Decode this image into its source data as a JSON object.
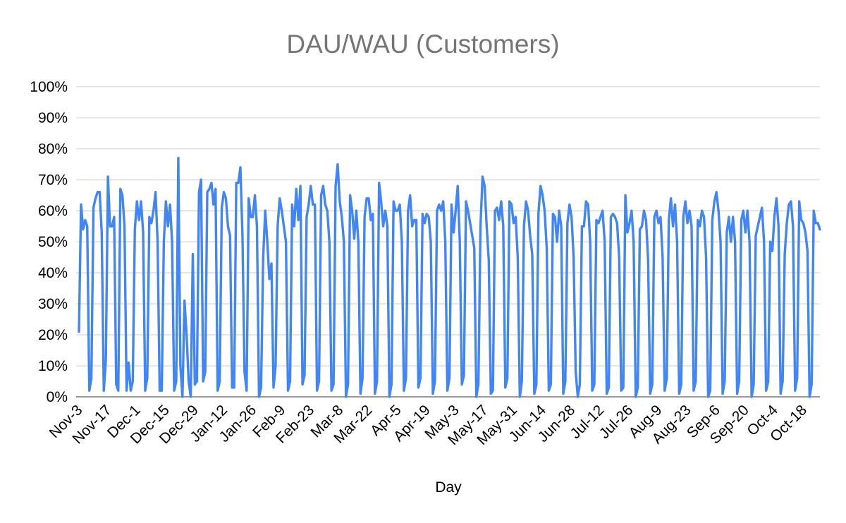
{
  "chart_data": {
    "type": "line",
    "title": "DAU/WAU (Customers)",
    "xlabel": "Day",
    "ylabel": "",
    "ylim": [
      0,
      1
    ],
    "grid": true,
    "legend": "none",
    "y_tick_labels": [
      "0%",
      "10%",
      "20%",
      "30%",
      "40%",
      "50%",
      "60%",
      "70%",
      "80%",
      "90%",
      "100%"
    ],
    "x_tick_labels": [
      "Nov-3",
      "Nov-17",
      "Dec-1",
      "Dec-15",
      "Dec-29",
      "Jan-12",
      "Jan-26",
      "Feb-9",
      "Feb-23",
      "Mar-8",
      "Mar-22",
      "Apr-5",
      "Apr-19",
      "May-3",
      "May-17",
      "May-31",
      "Jun-14",
      "Jun-28",
      "Jul-12",
      "Jul-26",
      "Aug-9",
      "Aug-23",
      "Sep-6",
      "Sep-20",
      "Oct-4",
      "Oct-18"
    ],
    "x_start_label": "Nov-3",
    "x_step_days": 1,
    "series": [
      {
        "color": "#4285f4",
        "values": [
          0.21,
          0.62,
          0.54,
          0.57,
          0.55,
          0.02,
          0.06,
          0.61,
          0.64,
          0.66,
          0.66,
          0.53,
          0.02,
          0.12,
          0.71,
          0.55,
          0.55,
          0.58,
          0.04,
          0.02,
          0.67,
          0.65,
          0.55,
          0.02,
          0.11,
          0.02,
          0.05,
          0.54,
          0.63,
          0.57,
          0.63,
          0.53,
          0.02,
          0.06,
          0.58,
          0.56,
          0.6,
          0.66,
          0.5,
          0.02,
          0.02,
          0.5,
          0.63,
          0.55,
          0.62,
          0.5,
          0.02,
          0.05,
          0.77,
          0.1,
          0.0,
          0.31,
          0.2,
          0.05,
          0.0,
          0.46,
          0.04,
          0.05,
          0.66,
          0.7,
          0.05,
          0.08,
          0.66,
          0.67,
          0.69,
          0.62,
          0.67,
          0.02,
          0.05,
          0.61,
          0.66,
          0.64,
          0.55,
          0.52,
          0.03,
          0.03,
          0.69,
          0.69,
          0.74,
          0.52,
          0.08,
          0.02,
          0.64,
          0.58,
          0.58,
          0.65,
          0.55,
          0.0,
          0.03,
          0.45,
          0.6,
          0.5,
          0.38,
          0.43,
          0.03,
          0.1,
          0.55,
          0.64,
          0.6,
          0.55,
          0.5,
          0.02,
          0.05,
          0.62,
          0.55,
          0.67,
          0.57,
          0.68,
          0.04,
          0.07,
          0.58,
          0.62,
          0.68,
          0.62,
          0.62,
          0.02,
          0.05,
          0.65,
          0.68,
          0.62,
          0.6,
          0.5,
          0.02,
          0.04,
          0.68,
          0.75,
          0.63,
          0.58,
          0.5,
          0.0,
          0.04,
          0.65,
          0.6,
          0.51,
          0.6,
          0.5,
          0.01,
          0.06,
          0.58,
          0.64,
          0.64,
          0.57,
          0.59,
          0.01,
          0.05,
          0.69,
          0.63,
          0.55,
          0.6,
          0.55,
          0.0,
          0.04,
          0.63,
          0.6,
          0.6,
          0.62,
          0.5,
          0.02,
          0.06,
          0.6,
          0.65,
          0.55,
          0.57,
          0.57,
          0.03,
          0.06,
          0.59,
          0.56,
          0.59,
          0.58,
          0.5,
          0.01,
          0.05,
          0.6,
          0.62,
          0.6,
          0.63,
          0.5,
          0.02,
          0.06,
          0.62,
          0.53,
          0.6,
          0.68,
          0.5,
          0.04,
          0.07,
          0.63,
          0.6,
          0.56,
          0.52,
          0.48,
          0.0,
          0.04,
          0.55,
          0.71,
          0.68,
          0.55,
          0.44,
          0.01,
          0.02,
          0.6,
          0.61,
          0.57,
          0.63,
          0.55,
          0.03,
          0.06,
          0.63,
          0.62,
          0.56,
          0.58,
          0.45,
          0.0,
          0.05,
          0.55,
          0.63,
          0.6,
          0.52,
          0.46,
          0.01,
          0.04,
          0.59,
          0.68,
          0.65,
          0.6,
          0.48,
          0.02,
          0.04,
          0.59,
          0.58,
          0.5,
          0.6,
          0.55,
          0.01,
          0.05,
          0.56,
          0.62,
          0.58,
          0.45,
          0.08,
          0.0,
          0.04,
          0.55,
          0.55,
          0.63,
          0.62,
          0.5,
          0.02,
          0.04,
          0.57,
          0.56,
          0.58,
          0.6,
          0.5,
          0.01,
          0.03,
          0.58,
          0.59,
          0.58,
          0.56,
          0.45,
          0.02,
          0.03,
          0.65,
          0.53,
          0.56,
          0.6,
          0.5,
          0.0,
          0.03,
          0.54,
          0.55,
          0.6,
          0.57,
          0.44,
          0.01,
          0.04,
          0.58,
          0.6,
          0.56,
          0.58,
          0.45,
          0.02,
          0.06,
          0.57,
          0.64,
          0.55,
          0.62,
          0.5,
          0.01,
          0.04,
          0.58,
          0.63,
          0.56,
          0.6,
          0.55,
          0.02,
          0.05,
          0.57,
          0.55,
          0.6,
          0.58,
          0.45,
          0.0,
          0.02,
          0.57,
          0.63,
          0.66,
          0.6,
          0.5,
          0.01,
          0.05,
          0.53,
          0.58,
          0.5,
          0.58,
          0.5,
          0.01,
          0.05,
          0.57,
          0.6,
          0.53,
          0.6,
          0.5,
          0.0,
          0.04,
          0.52,
          0.55,
          0.58,
          0.61,
          0.5,
          0.02,
          0.05,
          0.5,
          0.47,
          0.58,
          0.64,
          0.55,
          0.01,
          0.05,
          0.46,
          0.56,
          0.62,
          0.63,
          0.55,
          0.02,
          0.06,
          0.63,
          0.57,
          0.56,
          0.53,
          0.47,
          0.0,
          0.04,
          0.6,
          0.56,
          0.56,
          0.54
        ]
      }
    ]
  }
}
